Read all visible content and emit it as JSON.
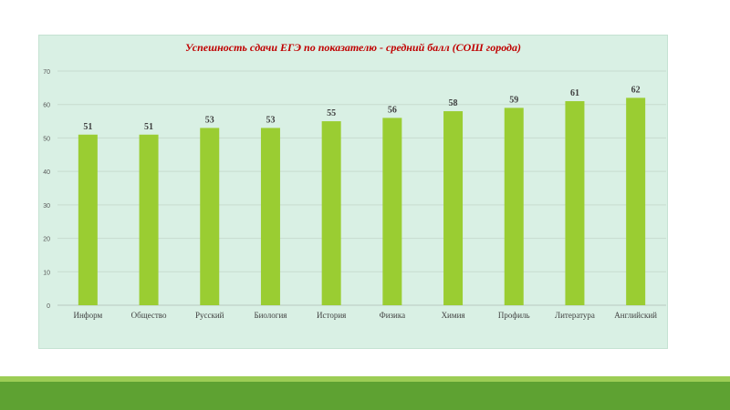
{
  "chart_data": {
    "type": "bar",
    "title": "Успешность сдачи ЕГЭ по показателю - средний балл (СОШ города)",
    "categories": [
      "Информ",
      "Общество",
      "Русский",
      "Биология",
      "История",
      "Физика",
      "Химия",
      "Профиль",
      "Литература",
      "Английский"
    ],
    "values": [
      51,
      51,
      53,
      53,
      55,
      56,
      58,
      59,
      61,
      62
    ],
    "ylim": [
      0,
      70
    ],
    "yticks": [
      0,
      10,
      20,
      30,
      40,
      50,
      60,
      70
    ],
    "grid": true,
    "xlabel": "",
    "ylabel": "",
    "bar_color": "#9acd32",
    "background_color": "#d9f0e4",
    "title_color": "#c00000"
  },
  "footer": {
    "band_light_color": "#9ccd55",
    "band_dark_color": "#5ea232"
  }
}
